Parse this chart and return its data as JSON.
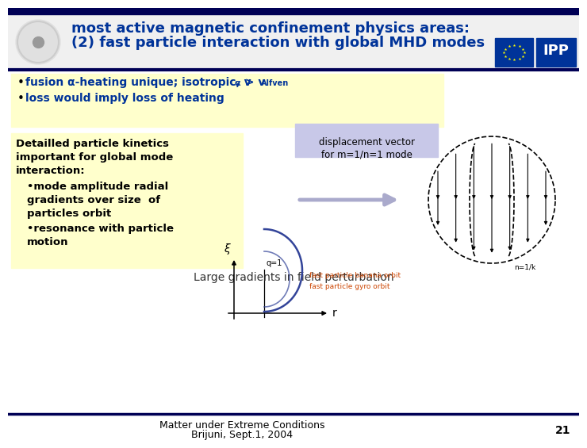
{
  "title_line1": "most active magnetic confinement physics areas:",
  "title_line2": "(2) fast particle interaction with global MHD modes",
  "title_color": "#003399",
  "slide_bg": "#ffffff",
  "yellow_bg": "#ffffcc",
  "blue_label_bg": "#c8c8e8",
  "disp_label1": "displacement vector",
  "disp_label2": "for m=1/n=1 mode",
  "large_grad": "Large gradients in field perturbation",
  "bottom_label1": "Matter under Extreme Conditions",
  "bottom_label2": "Brijuni, Sept.1, 2004",
  "page_num": "21",
  "header_bg": "#f0f0f0",
  "top_bar_color": "#000055",
  "bottom_bar_color": "#000055"
}
